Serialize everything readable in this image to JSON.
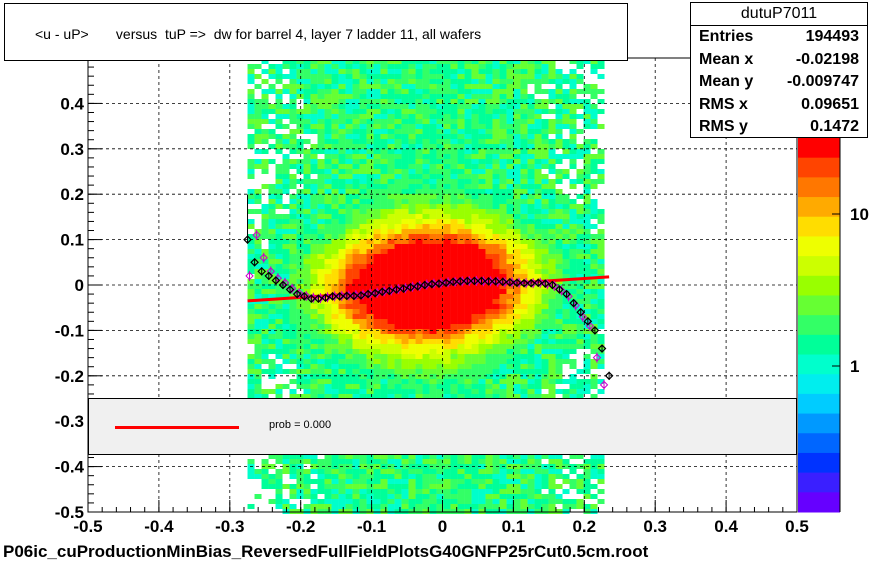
{
  "chart_data": {
    "type": "scatter",
    "title": "<u - uP>       versus  tuP =>  dw for barrel 4, layer 7 ladder 11, all wafers",
    "xlim": [
      -0.5,
      0.5
    ],
    "ylim": [
      -0.5,
      0.5
    ],
    "x_ticks": [
      "-0.5",
      "-0.4",
      "-0.3",
      "-0.2",
      "-0.1",
      "0",
      "0.1",
      "0.2",
      "0.3",
      "0.4",
      "0.5"
    ],
    "y_ticks": [
      "-0.5",
      "-0.4",
      "-0.3",
      "-0.2",
      "-0.1",
      "0",
      "0.1",
      "0.2",
      "0.3",
      "0.4"
    ],
    "color_scale_ticks": [
      "1",
      "10"
    ],
    "grid": true,
    "profile_black": {
      "x": [
        -0.275,
        -0.265,
        -0.255,
        -0.245,
        -0.235,
        -0.225,
        -0.215,
        -0.205,
        -0.195,
        -0.185,
        -0.175,
        -0.165,
        -0.155,
        -0.145,
        -0.135,
        -0.125,
        -0.115,
        -0.105,
        -0.095,
        -0.085,
        -0.075,
        -0.065,
        -0.055,
        -0.045,
        -0.035,
        -0.025,
        -0.015,
        -0.005,
        0.005,
        0.015,
        0.025,
        0.035,
        0.045,
        0.055,
        0.065,
        0.075,
        0.085,
        0.095,
        0.105,
        0.115,
        0.125,
        0.135,
        0.145,
        0.155,
        0.165,
        0.175,
        0.185,
        0.195,
        0.205,
        0.215,
        0.225,
        0.235
      ],
      "y": [
        0.1,
        0.05,
        0.03,
        0.02,
        0.01,
        0.0,
        -0.01,
        -0.02,
        -0.025,
        -0.03,
        -0.03,
        -0.028,
        -0.025,
        -0.025,
        -0.024,
        -0.024,
        -0.023,
        -0.02,
        -0.018,
        -0.015,
        -0.013,
        -0.01,
        -0.008,
        -0.005,
        -0.003,
        0.0,
        0.002,
        0.003,
        0.005,
        0.007,
        0.008,
        0.009,
        0.009,
        0.009,
        0.008,
        0.008,
        0.007,
        0.006,
        0.005,
        0.004,
        0.004,
        0.005,
        0.003,
        0.0,
        -0.01,
        -0.02,
        -0.04,
        -0.06,
        -0.08,
        -0.1,
        -0.14,
        -0.2
      ]
    },
    "profile_magenta": {
      "x": [
        -0.275,
        -0.265,
        -0.255,
        -0.245,
        -0.235,
        -0.225,
        -0.215,
        -0.205,
        -0.195,
        -0.185,
        -0.175,
        -0.165,
        -0.155,
        -0.145,
        -0.135,
        -0.125,
        -0.115,
        -0.105,
        -0.095,
        -0.085,
        -0.075,
        -0.065,
        -0.055,
        -0.045,
        -0.035,
        -0.025,
        -0.015,
        -0.005,
        0.005,
        0.015,
        0.025,
        0.035,
        0.045,
        0.055,
        0.065,
        0.075,
        0.085,
        0.095,
        0.105,
        0.115,
        0.125,
        0.135,
        0.145,
        0.155,
        0.165,
        0.175,
        0.185,
        0.195,
        0.205,
        0.215,
        0.225
      ],
      "y": [
        0.02,
        0.11,
        0.06,
        0.03,
        0.015,
        0.005,
        -0.008,
        -0.018,
        -0.024,
        -0.028,
        -0.029,
        -0.027,
        -0.025,
        -0.024,
        -0.023,
        -0.022,
        -0.021,
        -0.019,
        -0.017,
        -0.014,
        -0.012,
        -0.009,
        -0.007,
        -0.004,
        -0.002,
        0.001,
        0.003,
        0.004,
        0.006,
        0.007,
        0.008,
        0.009,
        0.009,
        0.008,
        0.008,
        0.007,
        0.006,
        0.006,
        0.005,
        0.004,
        0.004,
        0.005,
        0.002,
        -0.002,
        -0.012,
        -0.025,
        -0.045,
        -0.07,
        -0.09,
        -0.16,
        -0.22
      ]
    },
    "fit_line": {
      "x": [
        -0.275,
        0.235
      ],
      "y": [
        -0.035,
        0.018
      ]
    },
    "legend_entry": "prob = 0.000"
  },
  "stats": {
    "name": "dutuP7011",
    "rows": [
      {
        "label": "Entries",
        "value": "194493"
      },
      {
        "label": "Mean x",
        "value": "-0.02198"
      },
      {
        "label": "Mean y",
        "value": "-0.009747"
      },
      {
        "label": "RMS x",
        "value": "0.09651"
      },
      {
        "label": "RMS y",
        "value": "0.1472"
      }
    ]
  },
  "footer": "P06ic_cuProductionMinBias_ReversedFullFieldPlotsG40GNFP25rCut0.5cm.root",
  "colors": {
    "fit": "#ff0000",
    "profile_black": "#000000",
    "profile_magenta": "#cc00cc"
  }
}
